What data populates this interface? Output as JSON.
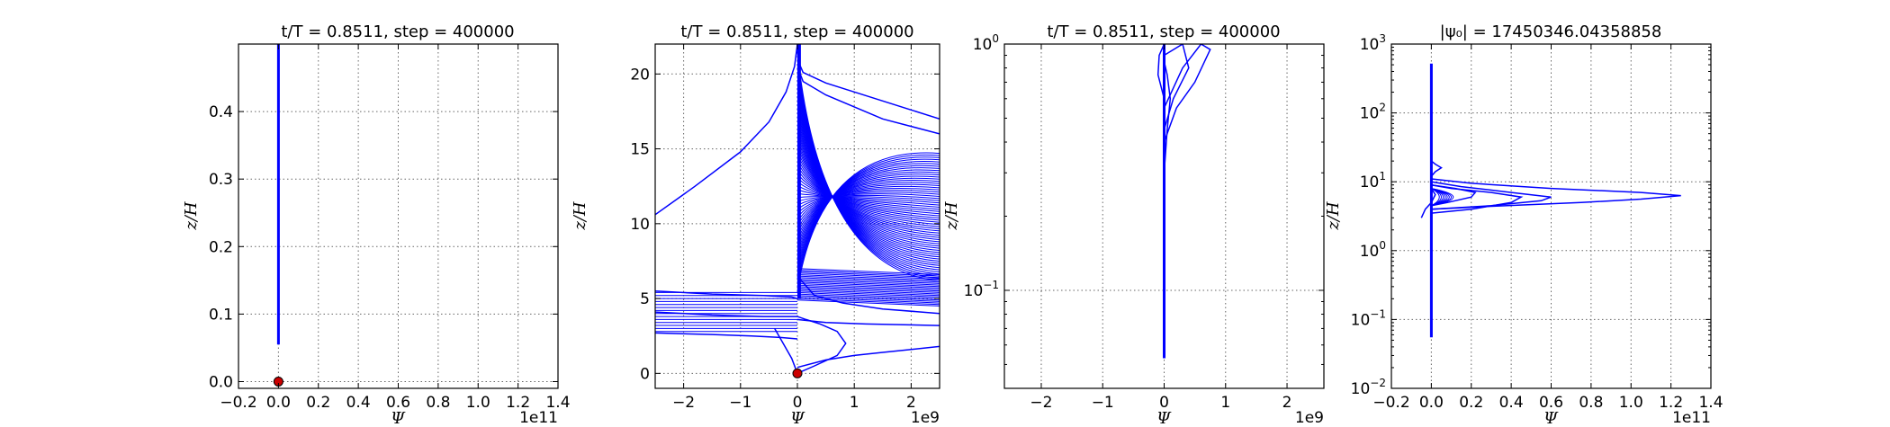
{
  "chart_data": [
    {
      "type": "line",
      "title": "t/T = 0.8511, step = 400000",
      "xlabel": "Ψ",
      "ylabel": "z/H",
      "x_scale_label": "1e11",
      "xlim": [
        -0.2,
        1.4
      ],
      "ylim": [
        -0.01,
        0.5
      ],
      "x_ticks": [
        "−0.2",
        "0.0",
        "0.2",
        "0.4",
        "0.6",
        "0.8",
        "1.0",
        "1.2",
        "1.4"
      ],
      "y_ticks": [
        "0.0",
        "0.1",
        "0.2",
        "0.3",
        "0.4"
      ],
      "grid": true,
      "series_color": "#0000ff",
      "marker_color": "#cc0000",
      "series": [
        {
          "x": [
            0,
            0
          ],
          "y": [
            0.055,
            0.5
          ]
        }
      ],
      "marker": {
        "x": 0,
        "y": 0
      }
    },
    {
      "type": "line",
      "title": "t/T = 0.8511, step = 400000",
      "xlabel": "Ψ",
      "ylabel": "z/H",
      "x_scale_label": "1e9",
      "xlim": [
        -2.5,
        2.5
      ],
      "ylim": [
        -1,
        22
      ],
      "x_ticks": [
        "−2",
        "−1",
        "0",
        "1",
        "2"
      ],
      "y_ticks": [
        "0",
        "5",
        "10",
        "15",
        "20"
      ],
      "grid": true,
      "series_color": "#0000ff",
      "marker_color": "#cc0000",
      "series": [
        {
          "x": [
            -2.5,
            -1.8,
            -1.0,
            -0.5,
            -0.2,
            -0.05,
            0
          ],
          "y": [
            10.6,
            12.5,
            14.8,
            16.8,
            18.8,
            20.5,
            22
          ]
        },
        {
          "x": [
            0,
            0.02,
            0.1,
            0.5,
            1.0,
            1.5,
            2.0,
            2.5
          ],
          "y": [
            22,
            20.8,
            20.1,
            19.4,
            18.8,
            18.2,
            17.6,
            17.0
          ]
        },
        {
          "x": [
            0,
            0.02,
            0.1,
            0.5,
            1.0,
            1.5,
            2.0,
            2.5
          ],
          "y": [
            22,
            20.3,
            19.5,
            18.6,
            17.8,
            17.0,
            16.5,
            16.0
          ]
        },
        {
          "x": [
            0,
            0.3,
            0.8,
            1.5,
            2.5
          ],
          "y": [
            6.5,
            5.2,
            4.7,
            4.3,
            4.0
          ]
        },
        {
          "x": [
            0,
            0.5,
            1.2,
            2.5
          ],
          "y": [
            3.6,
            3.4,
            3.3,
            3.2
          ]
        },
        {
          "x": [
            -2.5,
            -1.5,
            -0.6,
            -0.1,
            0
          ],
          "y": [
            5.5,
            5.3,
            5.2,
            5.1,
            5.0
          ]
        },
        {
          "x": [
            -2.5,
            -1.5,
            -0.6,
            -0.1,
            0
          ],
          "y": [
            4.1,
            3.9,
            3.8,
            3.8,
            3.8
          ]
        },
        {
          "x": [
            -2.5,
            -1.5,
            -0.8,
            -0.3,
            0
          ],
          "y": [
            2.7,
            2.6,
            2.5,
            2.4,
            2.3
          ]
        },
        {
          "x": [
            -0.4,
            -0.25,
            -0.1,
            0
          ],
          "y": [
            3.0,
            2.0,
            1.0,
            0
          ]
        },
        {
          "x": [
            0,
            0.3,
            0.7,
            0.85,
            0.7,
            0.4,
            0.15,
            0
          ],
          "y": [
            0,
            0.5,
            1.2,
            2.0,
            2.8,
            3.3,
            3.6,
            3.8
          ]
        },
        {
          "x": [
            0,
            0.5,
            1.0,
            1.5,
            2.0,
            2.5
          ],
          "y": [
            0.4,
            0.9,
            1.2,
            1.4,
            1.6,
            1.8
          ]
        }
      ],
      "marker": {
        "x": 0,
        "y": 0
      }
    },
    {
      "type": "line",
      "title": "t/T = 0.8511, step = 400000",
      "xlabel": "Ψ",
      "ylabel": "z/H",
      "x_scale_label": "1e9",
      "xlim": [
        -2.6,
        2.6
      ],
      "ylim": [
        0.04,
        1
      ],
      "yscale": "log",
      "x_ticks": [
        "−2",
        "−1",
        "0",
        "1",
        "2"
      ],
      "y_ticks": [
        {
          "base": "10",
          "exp": "−1",
          "value": 0.1
        },
        {
          "base": "10",
          "exp": "0",
          "value": 1
        }
      ],
      "grid": true,
      "series_color": "#0000ff",
      "series": [
        {
          "x": [
            0,
            0
          ],
          "y": [
            0.053,
            1
          ]
        },
        {
          "x": [
            0,
            0.2,
            0.5,
            0.75,
            0.6,
            0.3,
            0
          ],
          "y": [
            0.4,
            0.55,
            0.7,
            0.95,
            1.0,
            0.8,
            0.55
          ]
        },
        {
          "x": [
            0,
            0.15,
            0.4,
            0.3,
            0
          ],
          "y": [
            0.45,
            0.6,
            0.8,
            1.0,
            0.9
          ]
        },
        {
          "x": [
            0,
            -0.1,
            -0.08,
            0
          ],
          "y": [
            0.6,
            0.75,
            0.9,
            1.0
          ]
        },
        {
          "x": [
            0,
            0.05,
            0.1,
            0.05,
            0
          ],
          "y": [
            0.3,
            0.45,
            0.6,
            0.75,
            0.85
          ]
        }
      ]
    },
    {
      "type": "line",
      "title": "|ψ₀| = 17450346.04358858",
      "xlabel": "Ψ",
      "ylabel": "z/H",
      "x_scale_label": "1e11",
      "xlim": [
        -0.2,
        1.4
      ],
      "ylim": [
        0.01,
        1000
      ],
      "yscale": "log",
      "x_ticks": [
        "−0.2",
        "0.0",
        "0.2",
        "0.4",
        "0.6",
        "0.8",
        "1.0",
        "1.2",
        "1.4"
      ],
      "y_ticks": [
        {
          "base": "10",
          "exp": "−2",
          "value": 0.01
        },
        {
          "base": "10",
          "exp": "−1",
          "value": 0.1
        },
        {
          "base": "10",
          "exp": "0",
          "value": 1
        },
        {
          "base": "10",
          "exp": "1",
          "value": 10
        },
        {
          "base": "10",
          "exp": "2",
          "value": 100
        },
        {
          "base": "10",
          "exp": "3",
          "value": 1000
        }
      ],
      "grid": true,
      "series_color": "#0000ff",
      "series": [
        {
          "x": [
            0,
            0
          ],
          "y": [
            0.055,
            520
          ]
        },
        {
          "x": [
            0,
            0.3,
            0.75,
            1.05,
            1.25,
            1.05,
            0.6,
            0.2,
            0
          ],
          "y": [
            4.0,
            4.4,
            5.0,
            5.6,
            6.3,
            7.0,
            8.0,
            9.5,
            11
          ]
        },
        {
          "x": [
            0,
            0.2,
            0.4,
            0.45,
            0.3,
            0.1,
            0
          ],
          "y": [
            3.5,
            4.0,
            5.0,
            6.0,
            7.0,
            8.0,
            9.0
          ]
        },
        {
          "x": [
            0,
            0.08,
            0.2,
            0.22,
            0.12,
            0
          ],
          "y": [
            4.5,
            5.0,
            6.0,
            7.0,
            8.0,
            9.0
          ]
        },
        {
          "x": [
            -0.05,
            -0.03,
            0,
            0.02,
            0
          ],
          "y": [
            3.0,
            4.0,
            5.0,
            6.5,
            8.0
          ]
        },
        {
          "x": [
            0,
            0.02,
            0.05,
            0.02,
            0
          ],
          "y": [
            12,
            14,
            16,
            18,
            20
          ]
        },
        {
          "x": [
            0,
            0.3,
            0.55,
            0.6,
            0.4,
            0.15,
            0
          ],
          "y": [
            4.0,
            4.5,
            5.3,
            6.0,
            7.0,
            8.5,
            10
          ]
        }
      ]
    }
  ]
}
